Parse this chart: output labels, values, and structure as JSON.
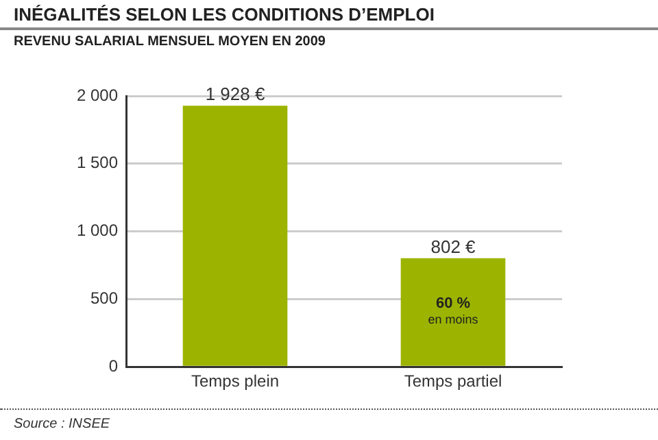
{
  "chart_data": {
    "type": "bar",
    "title": "INÉGALITÉS SELON  LES CONDITIONS D’EMPLOI",
    "subtitle": "REVENU SALARIAL MENSUEL MOYEN EN 2009",
    "categories": [
      "Temps plein",
      "Temps partiel"
    ],
    "values": [
      1928,
      802
    ],
    "color": "#9cb400",
    "value_labels": [
      "1 928 €",
      "802 €"
    ],
    "ylim": [
      0,
      2000
    ],
    "yticks": [
      {
        "value": 0,
        "label": "0"
      },
      {
        "value": 500,
        "label": "500"
      },
      {
        "value": 1000,
        "label": "1 000"
      },
      {
        "value": 1500,
        "label": "1 500"
      },
      {
        "value": 2000,
        "label": "2 000"
      }
    ],
    "grid": "y",
    "annotations": [
      "60 %",
      "en moins",
      "Source : INSEE"
    ]
  }
}
